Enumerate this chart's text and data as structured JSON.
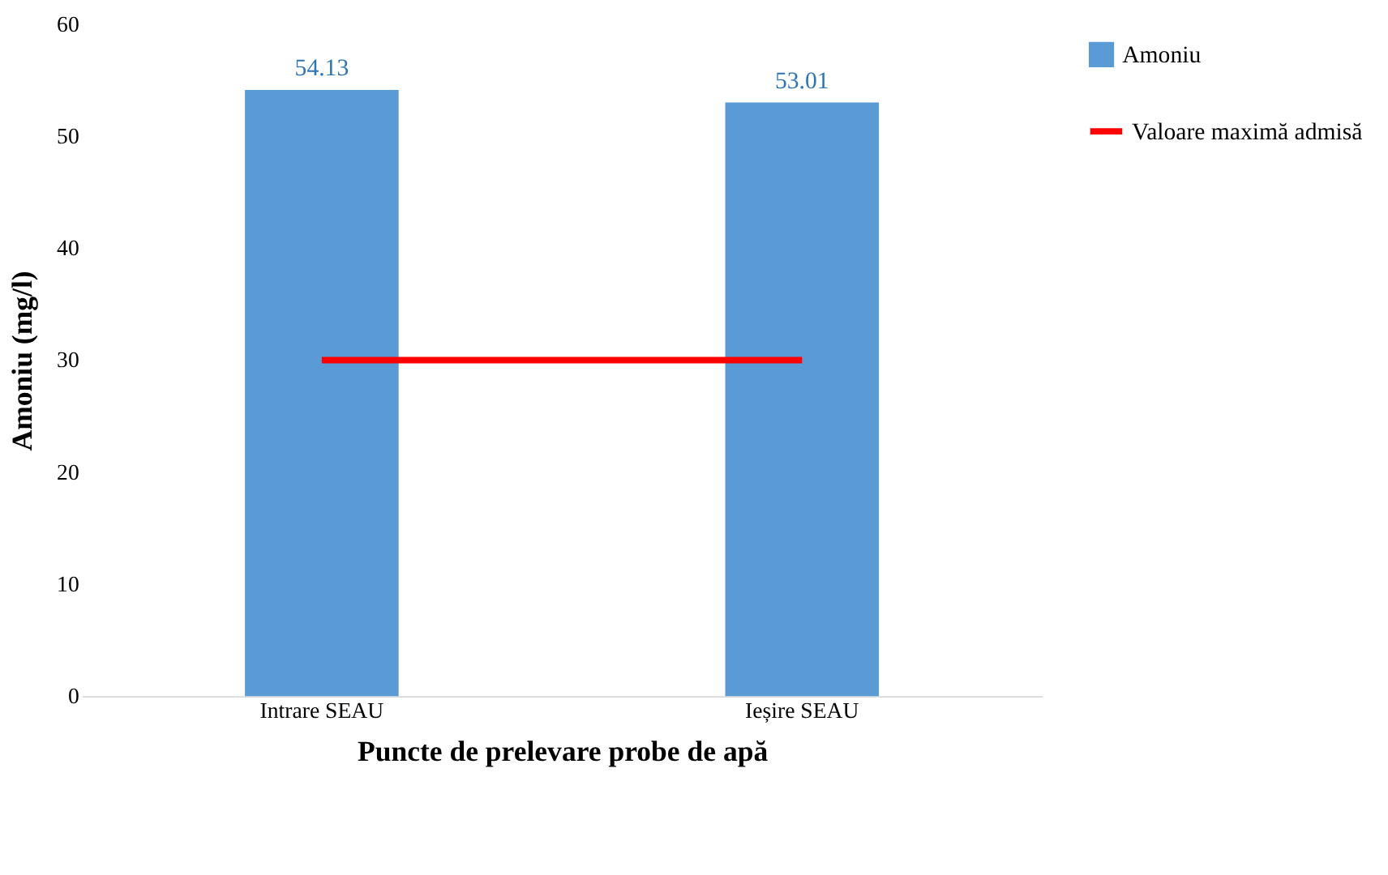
{
  "chart_data": {
    "type": "bar",
    "xlabel": "Puncte de prelevare probe de apă",
    "ylabel": "Amoniu  (mg/l)",
    "categories": [
      "Intrare SEAU",
      "Ieșire SEAU"
    ],
    "series": [
      {
        "name": "Amoniu",
        "color": "#5b9bd5",
        "values": [
          54.13,
          53.01
        ],
        "value_labels": [
          "54.13",
          "53.01"
        ]
      },
      {
        "name": "Valoare maximă admisă",
        "type": "line",
        "color": "#ff0000",
        "values": [
          30,
          30
        ]
      }
    ],
    "ylim": [
      0,
      60
    ],
    "yticks": [
      0,
      10,
      20,
      30,
      40,
      50,
      60
    ],
    "grid": false,
    "legend": "right"
  }
}
